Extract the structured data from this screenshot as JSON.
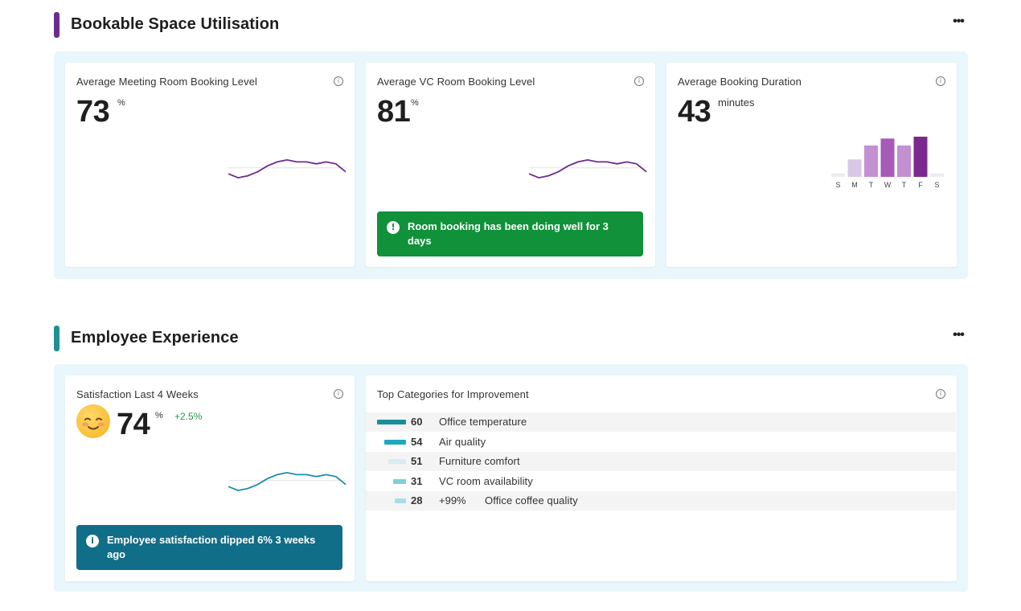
{
  "sections": {
    "space": {
      "title": "Bookable Space Utilisation",
      "accent": "#6a2d8f",
      "more_label": "•••"
    },
    "experience": {
      "title": "Employee Experience",
      "accent": "#1f8f96",
      "more_label": "•••"
    }
  },
  "cards": {
    "meeting": {
      "title": "Average Meeting Room Booking Level",
      "value": "73",
      "unit": "%",
      "info_icon": "info-icon"
    },
    "vc": {
      "title": "Average VC Room Booking Level",
      "value": "81",
      "unit": "%",
      "alert": "Room booking has been doing well for 3 days",
      "alert_icon_glyph": "!",
      "alert_color": "#10913a"
    },
    "duration": {
      "title": "Average Booking Duration",
      "value": "43",
      "unit": "minutes"
    },
    "satisfaction": {
      "title": "Satisfaction Last 4 Weeks",
      "value": "74",
      "unit": "%",
      "delta": "+2.5%",
      "alert": "Employee satisfaction dipped 6% 3 weeks ago",
      "alert_icon_glyph": "i",
      "alert_color": "#116e89"
    },
    "improvement": {
      "title": "Top Categories for Improvement",
      "rows": [
        {
          "value": "60",
          "extra": "",
          "label": "Office temperature",
          "color": "#1b8e99",
          "level": 1.0
        },
        {
          "value": "54",
          "extra": "",
          "label": "Air quality",
          "color": "#1ea7bd",
          "level": 0.75
        },
        {
          "value": "51",
          "extra": "",
          "label": "Furniture comfort",
          "color": "#d6ecf0",
          "level": 0.6
        },
        {
          "value": "31",
          "extra": "",
          "label": "VC room availability",
          "color": "#7fcfdb",
          "level": 0.45
        },
        {
          "value": "28",
          "extra": "+99%",
          "label": "Office coffee quality",
          "color": "#a9dde6",
          "level": 0.38
        }
      ]
    }
  },
  "chart_data": [
    {
      "type": "bar",
      "categories": [
        "S",
        "M",
        "T",
        "W",
        "T",
        "F",
        "S"
      ],
      "values": [
        1,
        5,
        9,
        11,
        9,
        12,
        1
      ],
      "colors": [
        "#eeeaf2",
        "#d8c8e6",
        "#c390d2",
        "#a75ab8",
        "#c390d2",
        "#7a2a8f",
        "#eeeaf2"
      ]
    },
    {
      "type": "line",
      "series": [
        {
          "values": [
            12,
            10,
            11,
            13,
            16,
            18,
            19,
            18,
            18,
            17,
            18,
            17,
            13
          ],
          "color": "#6e2a8c"
        }
      ]
    },
    {
      "type": "line",
      "series": [
        {
          "values": [
            12,
            10,
            11,
            13,
            16,
            18,
            19,
            18,
            18,
            17,
            18,
            17,
            13
          ],
          "color": "#6e2a8c"
        }
      ]
    },
    {
      "type": "line",
      "series": [
        {
          "values": [
            12,
            10,
            11,
            13,
            16,
            18,
            19,
            18,
            18,
            17,
            18,
            17,
            13
          ],
          "color": "#1e8ea8"
        }
      ]
    }
  ]
}
